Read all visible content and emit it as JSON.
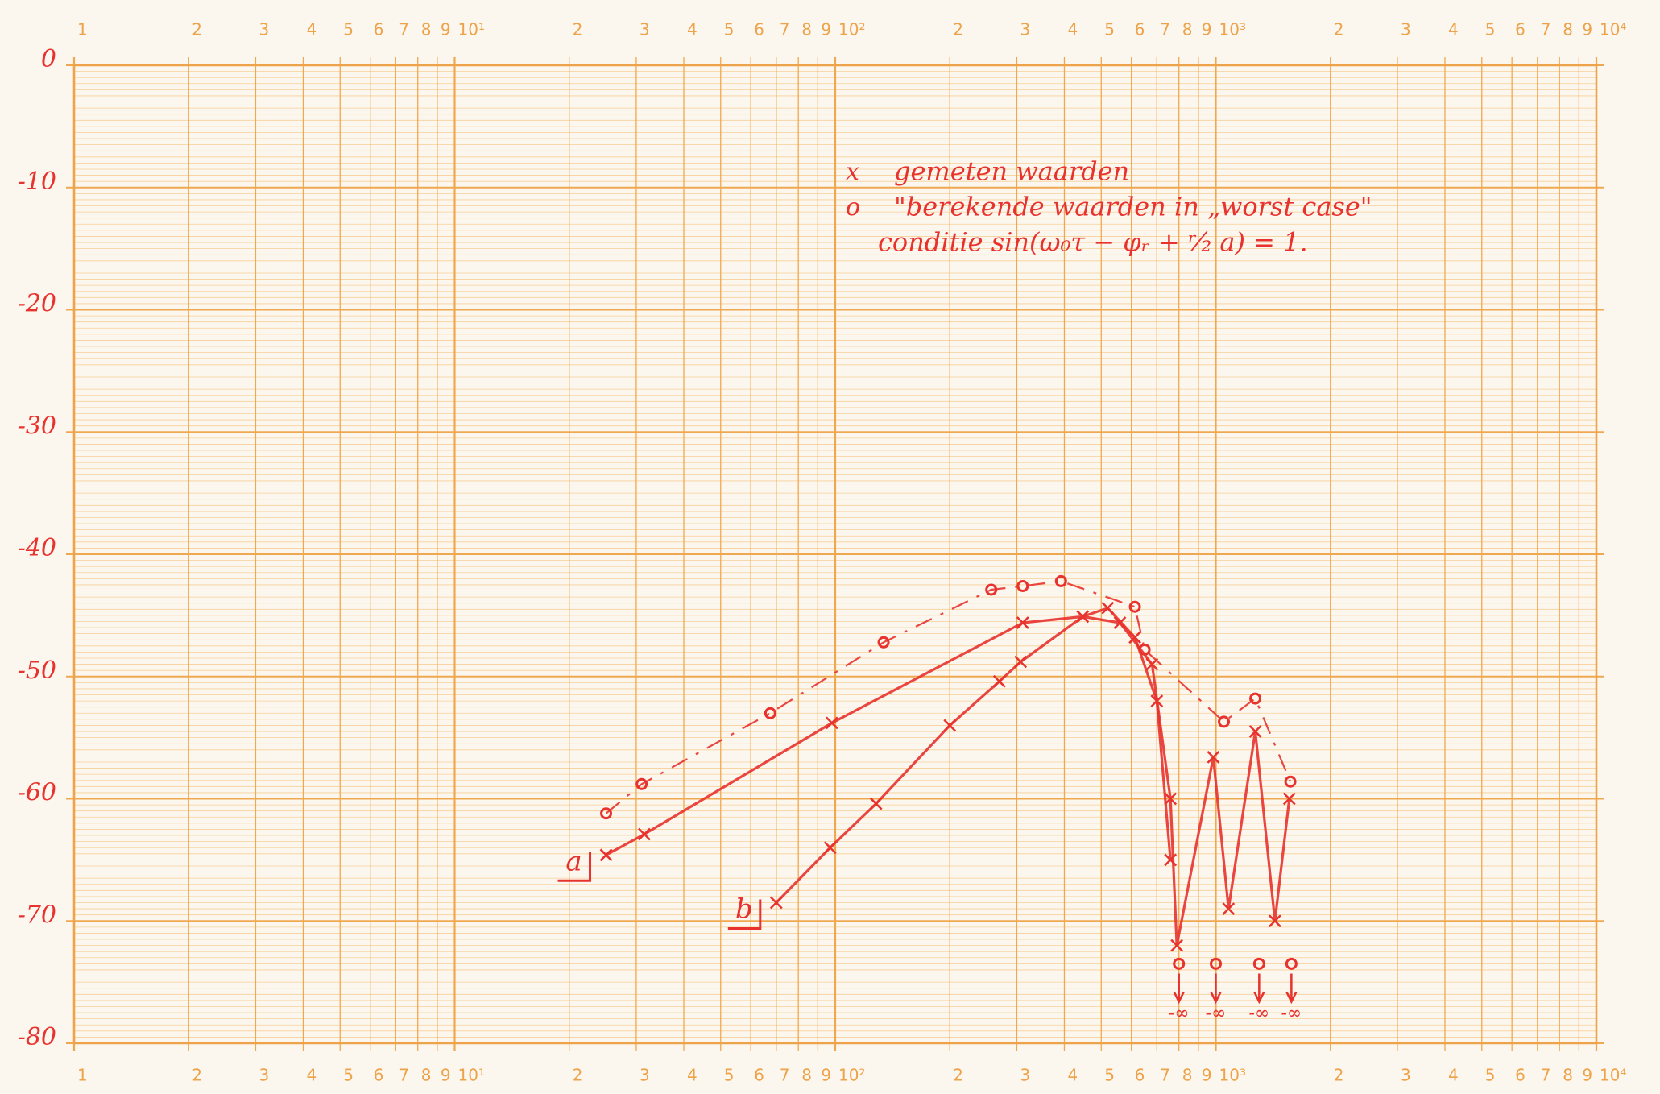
{
  "chart_data": {
    "type": "line",
    "xscale": "log",
    "grid": true,
    "xlim": [
      1,
      10000
    ],
    "ylim": [
      -80,
      0
    ],
    "xticks": [
      1,
      2,
      3,
      4,
      5,
      6,
      7,
      8,
      9,
      {
        "value": 10,
        "label": "10¹"
      },
      {
        "value": 20,
        "label": "2"
      },
      {
        "value": 30,
        "label": "3"
      },
      {
        "value": 40,
        "label": "4"
      },
      {
        "value": 50,
        "label": "5"
      },
      {
        "value": 60,
        "label": "6"
      },
      {
        "value": 70,
        "label": "7"
      },
      {
        "value": 80,
        "label": "8"
      },
      {
        "value": 90,
        "label": "9"
      },
      {
        "value": 100,
        "label": "10²"
      },
      {
        "value": 200,
        "label": "2"
      },
      {
        "value": 300,
        "label": "3"
      },
      {
        "value": 400,
        "label": "4"
      },
      {
        "value": 500,
        "label": "5"
      },
      {
        "value": 600,
        "label": "6"
      },
      {
        "value": 700,
        "label": "7"
      },
      {
        "value": 800,
        "label": "8"
      },
      {
        "value": 900,
        "label": "9"
      },
      {
        "value": 1000,
        "label": "10³"
      },
      {
        "value": 2000,
        "label": "2"
      },
      {
        "value": 3000,
        "label": "3"
      },
      {
        "value": 4000,
        "label": "4"
      },
      {
        "value": 5000,
        "label": "5"
      },
      {
        "value": 6000,
        "label": "6"
      },
      {
        "value": 7000,
        "label": "7"
      },
      {
        "value": 8000,
        "label": "8"
      },
      {
        "value": 9000,
        "label": "9"
      },
      {
        "value": 10000,
        "label": "10⁴"
      }
    ],
    "yticks": [
      0,
      -10,
      -20,
      -30,
      -40,
      -50,
      -60,
      -70,
      -80
    ],
    "legend": [
      {
        "marker": "x",
        "label": "gemeten waarden"
      },
      {
        "marker": "o",
        "label": "\"berekende waarden in „worst case\""
      }
    ],
    "note": "conditie  sin(ω₀τ − φᵣ + ʳ⁄₂ a) = 1.",
    "series": [
      {
        "name": "a",
        "color": "#e8322e",
        "marker": "x",
        "dashed": false,
        "x": [
          25,
          31.5,
          98,
          311,
          447,
          560,
          680,
          760,
          790,
          985,
          1080,
          1270,
          1430,
          1560
        ],
        "values": [
          -64.6,
          -62.9,
          -53.8,
          -45.6,
          -45.1,
          -45.6,
          -49,
          -60,
          -72,
          -56.6,
          -69,
          -54.5,
          -70,
          -60
        ]
      },
      {
        "color": "#e8322e",
        "marker": "o",
        "dashed": true,
        "x": [
          25,
          31,
          67.5,
          134,
          257,
          311,
          392,
          613,
          650,
          1050,
          1270,
          1570
        ],
        "values": [
          -61.2,
          -58.8,
          -53,
          -47.2,
          -42.9,
          -42.6,
          -42.2,
          -44.3,
          -47.8,
          -53.7,
          -51.8,
          -58.6
        ]
      },
      {
        "name": "b",
        "color": "#e8322e",
        "marker": "x",
        "dashed": false,
        "x": [
          70,
          97,
          128,
          200,
          270,
          307,
          447,
          520,
          613,
          700,
          760
        ],
        "values": [
          -68.5,
          -64,
          -60.4,
          -54,
          -50.4,
          -48.8,
          -45.1,
          -44.4,
          -46.8,
          -52,
          -65
        ]
      }
    ],
    "annotations": [
      {
        "text": "-∞",
        "x": 800
      },
      {
        "text": "-∞",
        "x": 1000
      },
      {
        "text": "-∞",
        "x": 1300
      },
      {
        "text": "-∞",
        "x": 1580
      }
    ]
  }
}
